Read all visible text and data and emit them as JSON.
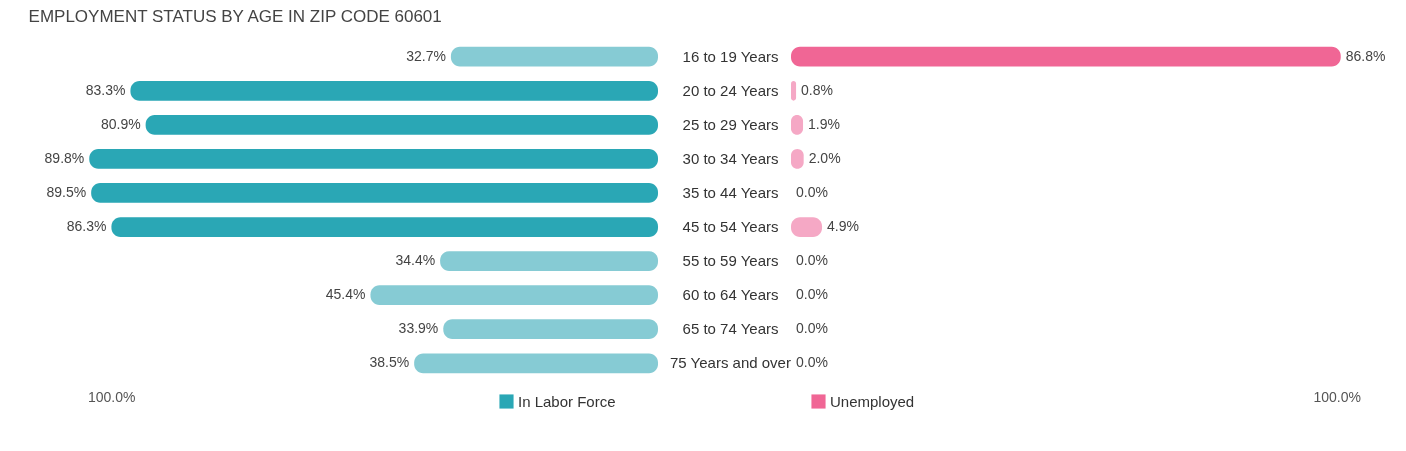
{
  "chart_data": [
    {
      "type": "bar",
      "orientation": "horizontal",
      "title": "EMPLOYMENT STATUS BY AGE IN ZIP CODE 60601",
      "categories": [
        "16 to 19 Years",
        "20 to 24 Years",
        "25 to 29 Years",
        "30 to 34 Years",
        "35 to 44 Years",
        "45 to 54 Years",
        "55 to 59 Years",
        "60 to 64 Years",
        "65 to 74 Years",
        "75 Years and over"
      ],
      "series": [
        {
          "name": "In Labor Force",
          "color": "#2aa7b5",
          "colors": [
            "#86cbd4",
            "#2aa7b5",
            "#2aa7b5",
            "#2aa7b5",
            "#2aa7b5",
            "#2aa7b5",
            "#86cbd4",
            "#86cbd4",
            "#86cbd4",
            "#86cbd4"
          ],
          "values": [
            32.7,
            83.3,
            80.9,
            89.8,
            89.5,
            86.3,
            34.4,
            45.4,
            33.9,
            38.5
          ],
          "value_labels": [
            "32.7%",
            "83.3%",
            "80.9%",
            "89.8%",
            "89.5%",
            "86.3%",
            "34.4%",
            "45.4%",
            "33.9%",
            "38.5%"
          ]
        }
      ],
      "annotations": [
        "100.0%"
      ],
      "legend": "bottom right"
    },
    {
      "type": "bar",
      "orientation": "horizontal",
      "series": [
        {
          "name": "Unemployed",
          "color": "#f06695",
          "colors": [
            "#f06695",
            "#f5a8c5",
            "#f5a8c5",
            "#f5a8c5",
            "#f5a8c5",
            "#f5a8c5",
            "#f5a8c5",
            "#f5a8c5",
            "#f5a8c5",
            "#f5a8c5"
          ],
          "values": [
            86.8,
            0.8,
            1.9,
            2.0,
            0.0,
            4.9,
            0.0,
            0.0,
            0.0,
            0.0
          ],
          "value_labels": [
            "86.8%",
            "0.8%",
            "1.9%",
            "2.0%",
            "0.0%",
            "4.9%",
            "0.0%",
            "0.0%",
            "0.0%",
            "0.0%"
          ]
        }
      ],
      "annotations": [
        "100.0%"
      ],
      "legend": "bottom left"
    }
  ]
}
